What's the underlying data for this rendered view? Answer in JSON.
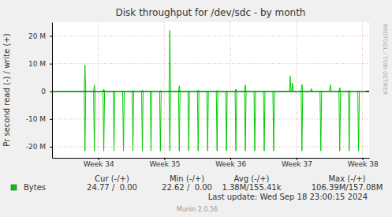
{
  "chart_data": {
    "type": "line",
    "title": "Disk throughput for /dev/sdc - by month",
    "y_label": "Pr second read (-) / write (+)",
    "x": [
      33.3,
      33.786,
      33.798,
      33.81,
      33.928,
      33.94,
      33.952,
      34.071,
      34.083,
      34.095,
      34.226,
      34.238,
      34.25,
      34.369,
      34.381,
      34.393,
      34.512,
      34.524,
      34.536,
      34.655,
      34.667,
      34.679,
      34.786,
      34.798,
      34.81,
      34.928,
      34.94,
      34.952,
      35.071,
      35.083,
      35.095,
      35.214,
      35.226,
      35.238,
      35.357,
      35.369,
      35.381,
      35.5,
      35.512,
      35.524,
      35.643,
      35.655,
      35.667,
      35.786,
      35.798,
      35.81,
      35.928,
      35.94,
      35.952,
      36.071,
      36.083,
      36.095,
      36.214,
      36.226,
      36.238,
      36.357,
      36.369,
      36.381,
      36.5,
      36.512,
      36.524,
      36.643,
      36.655,
      36.667,
      36.893,
      36.905,
      36.917,
      36.928,
      36.94,
      36.952,
      37.071,
      37.083,
      37.095,
      37.214,
      37.226,
      37.238,
      37.357,
      37.369,
      37.381,
      37.5,
      37.512,
      37.524,
      37.643,
      37.655,
      37.667,
      37.786,
      37.798,
      37.81,
      37.928,
      37.94,
      37.952,
      38.05
    ],
    "xlim": [
      33.3,
      38.1
    ],
    "xticks": [
      {
        "value": 34,
        "label": "Week 34"
      },
      {
        "value": 35,
        "label": "Week 35"
      },
      {
        "value": 36,
        "label": "Week 36"
      },
      {
        "value": 37,
        "label": "Week 37"
      },
      {
        "value": 38,
        "label": "Week 38"
      }
    ],
    "ylim": [
      -24000000,
      25000000
    ],
    "yticks": [
      {
        "value": -20000000,
        "label": "-20 M"
      },
      {
        "value": -10000000,
        "label": "-10 M"
      },
      0,
      {
        "value": 10000000,
        "label": "10 M"
      },
      {
        "value": 20000000,
        "label": "20 M"
      }
    ],
    "grid": true,
    "legend": "bottom",
    "series": [
      {
        "name": "Bytes",
        "color": "#00cc00",
        "values": [
          0,
          0,
          -21500000,
          0,
          0,
          -21500000,
          0,
          0,
          -21500000,
          0,
          0,
          -21500000,
          0,
          0,
          -21500000,
          0,
          0,
          -21500000,
          0,
          0,
          -21500000,
          0,
          0,
          -21500000,
          0,
          0,
          -21500000,
          0,
          0,
          -21500000,
          0,
          0,
          -21500000,
          0,
          0,
          -21500000,
          0,
          0,
          -21500000,
          0,
          0,
          -21500000,
          0,
          0,
          -21500000,
          0,
          0,
          -21500000,
          0,
          0,
          -21500000,
          0,
          0,
          -21500000,
          0,
          0,
          -21500000,
          0,
          0,
          -21500000,
          0,
          0,
          -21500000,
          0,
          0,
          0,
          0,
          0,
          0,
          0,
          0,
          -21500000,
          0,
          0,
          0,
          0,
          0,
          -21500000,
          0,
          0,
          0,
          0,
          0,
          -21500000,
          0,
          0,
          -21500000,
          0,
          0,
          -21500000,
          0,
          0
        ]
      },
      {
        "color": "#00cc00",
        "values": [
          0,
          0,
          9500000,
          0,
          0,
          2300000,
          0,
          0,
          800000,
          0,
          0,
          0,
          0,
          0,
          0,
          0,
          0,
          300000,
          0,
          0,
          500000,
          0,
          0,
          0,
          0,
          0,
          300000,
          0,
          0,
          22000000,
          0,
          0,
          2000000,
          0,
          0,
          0,
          0,
          0,
          500000,
          0,
          0,
          0,
          0,
          0,
          300000,
          0,
          0,
          0,
          0,
          0,
          800000,
          0,
          0,
          2300000,
          0,
          0,
          0,
          0,
          0,
          0,
          0,
          0,
          0,
          0,
          0,
          5500000,
          0,
          0,
          3000000,
          0,
          0,
          2500000,
          0,
          0,
          1000000,
          0,
          0,
          0,
          0,
          0,
          2400000,
          0,
          0,
          1300000,
          0,
          0,
          300000,
          0,
          0,
          0,
          0,
          0
        ]
      }
    ],
    "legend_table": {
      "columns": [
        "Cur (-/+)",
        "Min (-/+)",
        "Avg (-/+)",
        "Max (-/+)"
      ],
      "values": [
        "24.77 /  0.00",
        "22.62 /  0.00",
        "1.38M/155.41k",
        "106.39M/157.08M"
      ]
    },
    "last_update": "Last update: Wed Sep 18 23:00:15 2024",
    "footer": "Munin 2.0.56",
    "watermark": "RRDTOOL / TOBI OETIKER"
  }
}
